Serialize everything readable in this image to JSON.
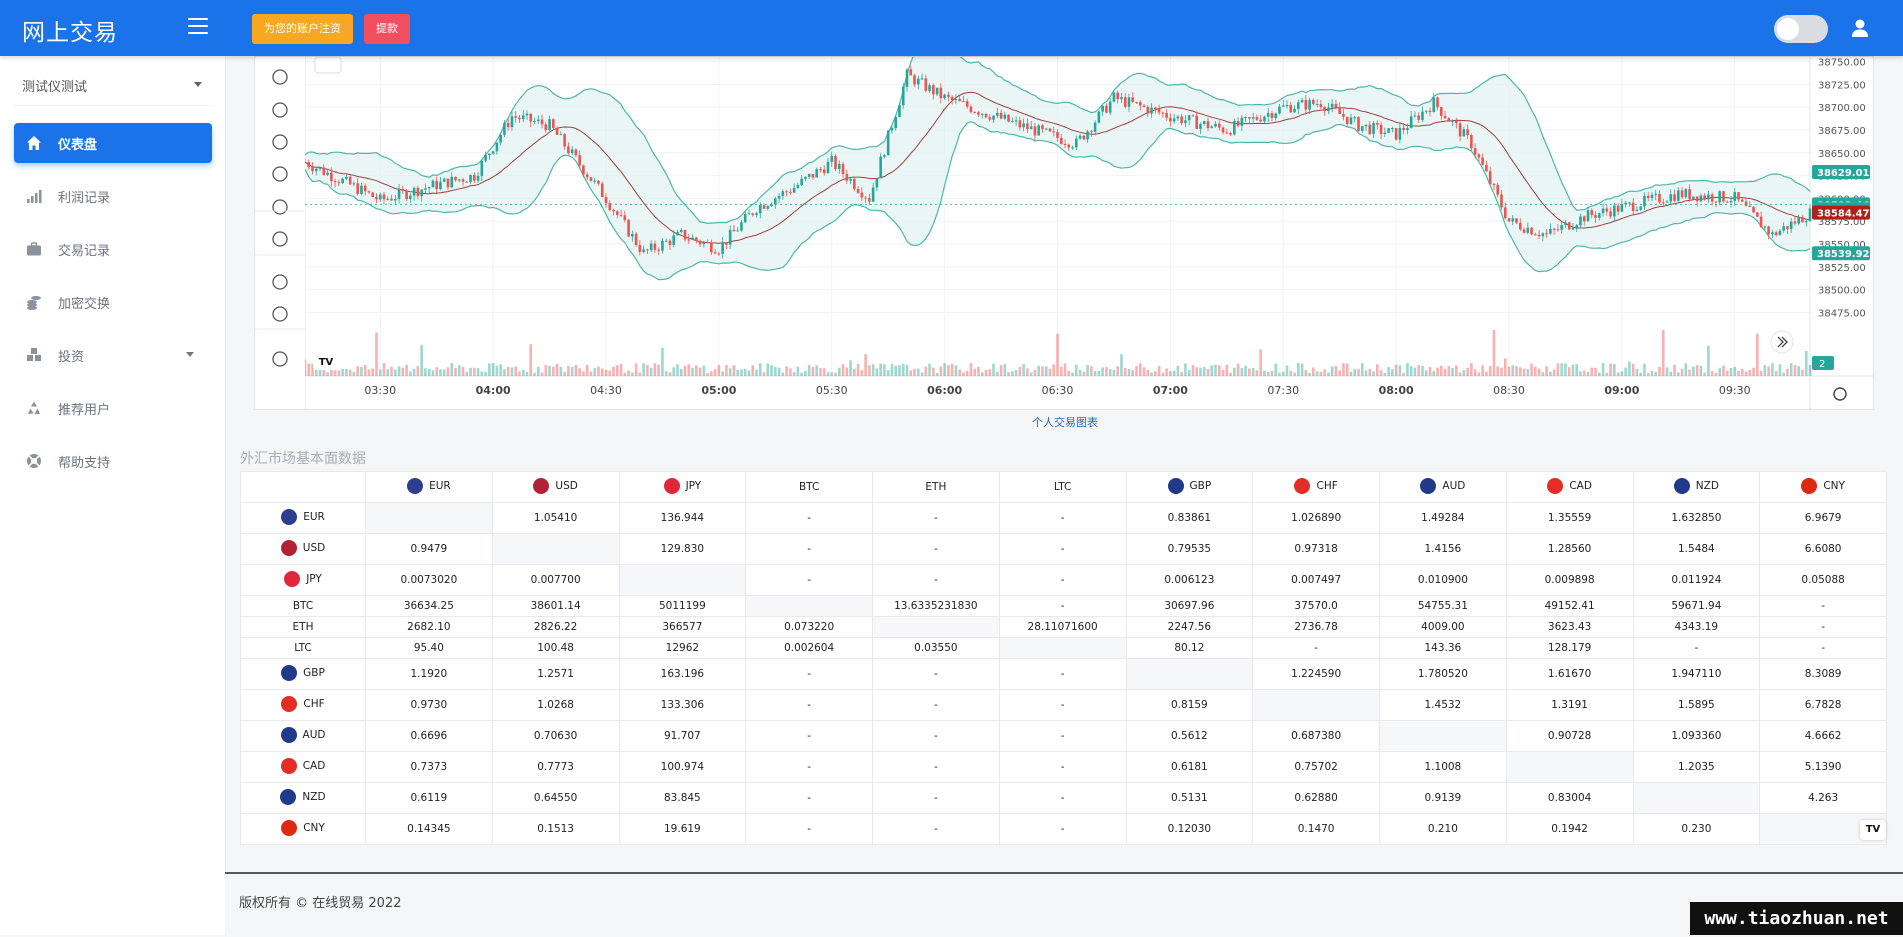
{
  "app": {
    "brand": "网上交易",
    "register_button": "为您的账户注资",
    "withdraw_button": "提款",
    "copyright": "版权所有 © 在线贸易 2022",
    "watermark": "www.tiaozhuan.net"
  },
  "sidebar": {
    "user_select": "测试仪测试",
    "items": [
      {
        "label": "仪表盘",
        "icon": "home-icon",
        "active": true
      },
      {
        "label": "利润记录",
        "icon": "bar-chart-icon"
      },
      {
        "label": "交易记录",
        "icon": "briefcase-icon"
      },
      {
        "label": "加密交换",
        "icon": "coins-icon"
      },
      {
        "label": "投资",
        "icon": "cubes-icon",
        "has_submenu": true
      },
      {
        "label": "推荐用户",
        "icon": "recycle-icon"
      },
      {
        "label": "帮助支持",
        "icon": "lifebuoy-icon"
      }
    ]
  },
  "chart": {
    "link_text": "个人交易图表",
    "time_labels": [
      "03:30",
      "04:00",
      "04:30",
      "05:00",
      "05:30",
      "06:00",
      "06:30",
      "07:00",
      "07:30",
      "08:00",
      "08:30",
      "09:00",
      "09:30"
    ],
    "bold_time_labels": [
      "04:00",
      "05:00",
      "06:00",
      "07:00",
      "08:00",
      "09:00"
    ],
    "price_labels": [
      "38750.00",
      "38725.00",
      "38700.00",
      "38675.00",
      "38650.00",
      "38625.00",
      "38600.00",
      "38575.00",
      "38550.00",
      "38525.00",
      "38500.00",
      "38475.00"
    ],
    "price_tags": [
      {
        "text": "38629.01",
        "color": "#26a69a"
      },
      {
        "text": "38593.46",
        "color": "#26a69a"
      },
      {
        "text": "38588.13",
        "color": "#26a69a"
      },
      {
        "text": "38584.47",
        "color": "#b71c1c"
      },
      {
        "text": "38539.92",
        "color": "#26a69a"
      }
    ],
    "volume_tag": "2",
    "tool_icons": [
      "lines-icon",
      "brush-icon",
      "text-tool-icon",
      "pattern-icon",
      "forecast-icon",
      "emoji-icon",
      "ruler-icon",
      "zoom-icon",
      "magnet-icon"
    ],
    "colors": {
      "up": "#26a69a",
      "down": "#ef5350",
      "band": "#4db6ac",
      "band_fill": "#e0f2f1",
      "ma": "#a1403b"
    },
    "chart_data": {
      "type": "candlestick",
      "x_range": [
        "03:10",
        "09:50"
      ],
      "ylim": [
        38470,
        38755
      ],
      "symbol_time_axis": [
        "03:30",
        "04:00",
        "04:30",
        "05:00",
        "05:30",
        "06:00",
        "06:30",
        "07:00",
        "07:30",
        "08:00",
        "08:30",
        "09:00",
        "09:30"
      ],
      "close_path": [
        {
          "time": "03:10",
          "price": 38640
        },
        {
          "time": "03:30",
          "price": 38598
        },
        {
          "time": "03:45",
          "price": 38615
        },
        {
          "time": "03:55",
          "price": 38625
        },
        {
          "time": "04:05",
          "price": 38690
        },
        {
          "time": "04:15",
          "price": 38680
        },
        {
          "time": "04:30",
          "price": 38600
        },
        {
          "time": "04:40",
          "price": 38540
        },
        {
          "time": "04:50",
          "price": 38560
        },
        {
          "time": "05:00",
          "price": 38545
        },
        {
          "time": "05:10",
          "price": 38590
        },
        {
          "time": "05:20",
          "price": 38612
        },
        {
          "time": "05:30",
          "price": 38640
        },
        {
          "time": "05:40",
          "price": 38600
        },
        {
          "time": "05:50",
          "price": 38735
        },
        {
          "time": "06:00",
          "price": 38710
        },
        {
          "time": "06:10",
          "price": 38695
        },
        {
          "time": "06:20",
          "price": 38680
        },
        {
          "time": "06:35",
          "price": 38660
        },
        {
          "time": "06:45",
          "price": 38710
        },
        {
          "time": "07:00",
          "price": 38690
        },
        {
          "time": "07:15",
          "price": 38675
        },
        {
          "time": "07:30",
          "price": 38700
        },
        {
          "time": "07:40",
          "price": 38705
        },
        {
          "time": "07:50",
          "price": 38680
        },
        {
          "time": "08:00",
          "price": 38670
        },
        {
          "time": "08:10",
          "price": 38705
        },
        {
          "time": "08:20",
          "price": 38660
        },
        {
          "time": "08:30",
          "price": 38575
        },
        {
          "time": "08:40",
          "price": 38560
        },
        {
          "time": "08:50",
          "price": 38580
        },
        {
          "time": "09:00",
          "price": 38590
        },
        {
          "time": "09:15",
          "price": 38605
        },
        {
          "time": "09:30",
          "price": 38600
        },
        {
          "time": "09:40",
          "price": 38560
        },
        {
          "time": "09:50",
          "price": 38584
        }
      ]
    }
  },
  "table": {
    "title": "外汇市场基本面数据",
    "currencies": [
      {
        "code": "EUR",
        "flag": "#2d3e91"
      },
      {
        "code": "USD",
        "flag": "#b22234"
      },
      {
        "code": "JPY",
        "flag": "#e0263b"
      },
      {
        "code": "BTC",
        "flag": ""
      },
      {
        "code": "ETH",
        "flag": ""
      },
      {
        "code": "LTC",
        "flag": ""
      },
      {
        "code": "GBP",
        "flag": "#1f3a8a"
      },
      {
        "code": "CHF",
        "flag": "#e52d27"
      },
      {
        "code": "AUD",
        "flag": "#1f3a8a"
      },
      {
        "code": "CAD",
        "flag": "#e52d27"
      },
      {
        "code": "NZD",
        "flag": "#1f3a8a"
      },
      {
        "code": "CNY",
        "flag": "#de2910"
      }
    ],
    "rows": [
      [
        "",
        "1.05410",
        "136.944",
        "-",
        "-",
        "-",
        "0.83861",
        "1.026890",
        "1.49284",
        "1.35559",
        "1.632850",
        "6.9679"
      ],
      [
        "0.9479",
        "",
        "129.830",
        "-",
        "-",
        "-",
        "0.79535",
        "0.97318",
        "1.4156",
        "1.28560",
        "1.5484",
        "6.6080"
      ],
      [
        "0.0073020",
        "0.007700",
        "",
        "-",
        "-",
        "-",
        "0.006123",
        "0.007497",
        "0.010900",
        "0.009898",
        "0.011924",
        "0.05088"
      ],
      [
        "36634.25",
        "38601.14",
        "5011199",
        "",
        "13.6335231830",
        "-",
        "30697.96",
        "37570.0",
        "54755.31",
        "49152.41",
        "59671.94",
        "-"
      ],
      [
        "2682.10",
        "2826.22",
        "366577",
        "0.073220",
        "",
        "28.11071600",
        "2247.56",
        "2736.78",
        "4009.00",
        "3623.43",
        "4343.19",
        "-"
      ],
      [
        "95.40",
        "100.48",
        "12962",
        "0.002604",
        "0.03550",
        "",
        "80.12",
        "-",
        "143.36",
        "128.179",
        "-",
        "-"
      ],
      [
        "1.1920",
        "1.2571",
        "163.196",
        "-",
        "-",
        "-",
        "",
        "1.224590",
        "1.780520",
        "1.61670",
        "1.947110",
        "8.3089"
      ],
      [
        "0.9730",
        "1.0268",
        "133.306",
        "-",
        "-",
        "-",
        "0.8159",
        "",
        "1.4532",
        "1.3191",
        "1.5895",
        "6.7828"
      ],
      [
        "0.6696",
        "0.70630",
        "91.707",
        "-",
        "-",
        "-",
        "0.5612",
        "0.687380",
        "",
        "0.90728",
        "1.093360",
        "4.6662"
      ],
      [
        "0.7373",
        "0.7773",
        "100.974",
        "-",
        "-",
        "-",
        "0.6181",
        "0.75702",
        "1.1008",
        "",
        "1.2035",
        "5.1390"
      ],
      [
        "0.6119",
        "0.64550",
        "83.845",
        "-",
        "-",
        "-",
        "0.5131",
        "0.62880",
        "0.9139",
        "0.83004",
        "",
        "4.263"
      ],
      [
        "0.14345",
        "0.1513",
        "19.619",
        "-",
        "-",
        "-",
        "0.12030",
        "0.1470",
        "0.210",
        "0.1942",
        "0.230",
        ""
      ]
    ]
  }
}
